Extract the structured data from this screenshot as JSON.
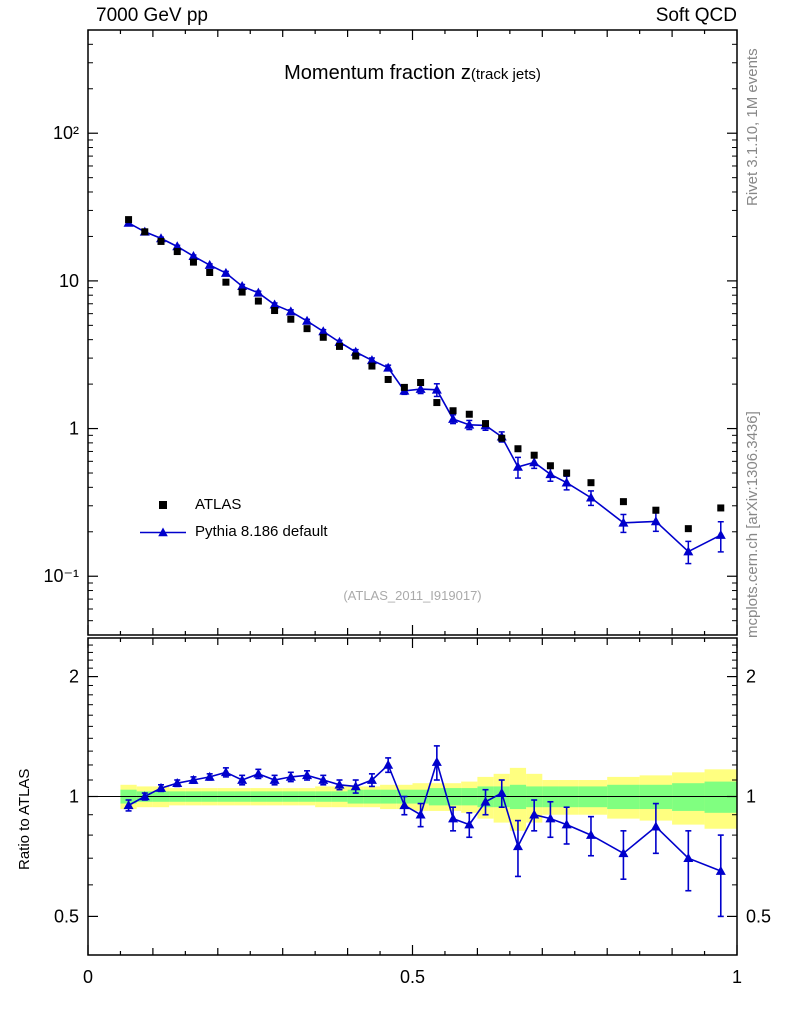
{
  "header": {
    "left": "7000 GeV pp",
    "right": "Soft QCD"
  },
  "title": {
    "main": "Momentum fraction z",
    "sub": "(track jets)"
  },
  "watermark": "(ATLAS_2011_I919017)",
  "side_labels": {
    "top_right": "Rivet 3.1.10, 1M events",
    "bottom_right": "mcplots.cern.ch [arXiv:1306.3436]"
  },
  "ratio_axis_label": "Ratio to ATLAS",
  "legend": {
    "atlas": "ATLAS",
    "pythia": "Pythia 8.186 default"
  },
  "colors": {
    "atlas": "#000000",
    "pythia": "#0000cc",
    "band_yellow": "#ffff80",
    "band_green": "#80ff80",
    "watermark": "#aaaaaa",
    "side_text": "#888888"
  },
  "axes": {
    "x": {
      "min": 0,
      "max": 1,
      "ticks": [
        {
          "v": 0,
          "label": "0"
        },
        {
          "v": 0.5,
          "label": "0.5"
        },
        {
          "v": 1,
          "label": "1"
        }
      ]
    },
    "y_top": {
      "scale": "log",
      "ticks": [
        {
          "v": 100,
          "label": "10²"
        },
        {
          "v": 10,
          "label": "10"
        },
        {
          "v": 1,
          "label": "1"
        },
        {
          "v": 0.1,
          "label": "10⁻¹"
        }
      ]
    },
    "y_ratio": {
      "scale": "log",
      "ticks": [
        {
          "v": 2,
          "label": "2"
        },
        {
          "v": 1,
          "label": "1"
        },
        {
          "v": 0.5,
          "label": "0.5"
        }
      ]
    }
  },
  "chart_data": {
    "type": "line",
    "xlabel": "z",
    "x": [
      0.0625,
      0.0875,
      0.1125,
      0.1375,
      0.1625,
      0.1875,
      0.2125,
      0.2375,
      0.2625,
      0.2875,
      0.3125,
      0.3375,
      0.3625,
      0.3875,
      0.4125,
      0.4375,
      0.4625,
      0.4875,
      0.5125,
      0.5375,
      0.5625,
      0.5875,
      0.6125,
      0.6375,
      0.6625,
      0.6875,
      0.7125,
      0.7375,
      0.775,
      0.825,
      0.875,
      0.925,
      0.975
    ],
    "top_panel": {
      "yscale": "log",
      "ylim": [
        0.04,
        500
      ],
      "series": [
        {
          "name": "ATLAS",
          "style": "filled-square",
          "values": [
            26,
            21.5,
            18.5,
            15.8,
            13.4,
            11.4,
            9.8,
            8.4,
            7.3,
            6.3,
            5.5,
            4.75,
            4.15,
            3.6,
            3.1,
            2.65,
            2.15,
            1.9,
            2.05,
            1.5,
            1.32,
            1.25,
            1.08,
            0.86,
            0.73,
            0.66,
            0.56,
            0.5,
            0.43,
            0.32,
            0.28,
            0.21,
            0.29
          ]
        },
        {
          "name": "Pythia 8.186 default",
          "style": "line-triangle",
          "values": [
            24.7,
            21.5,
            19.4,
            17.1,
            14.7,
            12.8,
            11.3,
            9.2,
            8.3,
            6.9,
            6.2,
            5.35,
            4.55,
            3.85,
            3.3,
            2.9,
            2.58,
            1.8,
            1.85,
            1.83,
            1.16,
            1.06,
            1.05,
            0.88,
            0.55,
            0.59,
            0.49,
            0.43,
            0.34,
            0.23,
            0.235,
            0.147,
            0.19
          ]
        }
      ]
    },
    "ratio_panel": {
      "yscale": "log",
      "ylim": [
        0.4,
        2.5
      ],
      "reference": 1,
      "values": [
        0.95,
        1.0,
        1.05,
        1.08,
        1.1,
        1.12,
        1.15,
        1.1,
        1.14,
        1.1,
        1.12,
        1.13,
        1.1,
        1.07,
        1.06,
        1.1,
        1.2,
        0.95,
        0.9,
        1.22,
        0.88,
        0.85,
        0.97,
        1.02,
        0.75,
        0.9,
        0.88,
        0.85,
        0.8,
        0.72,
        0.84,
        0.7,
        0.65
      ],
      "errors": [
        0.03,
        0.02,
        0.02,
        0.02,
        0.02,
        0.02,
        0.03,
        0.03,
        0.03,
        0.03,
        0.03,
        0.03,
        0.03,
        0.03,
        0.04,
        0.04,
        0.05,
        0.05,
        0.06,
        0.12,
        0.06,
        0.06,
        0.07,
        0.08,
        0.12,
        0.08,
        0.09,
        0.09,
        0.09,
        0.1,
        0.12,
        0.12,
        0.15
      ],
      "yellow_band": [
        0.07,
        0.06,
        0.06,
        0.05,
        0.05,
        0.05,
        0.05,
        0.05,
        0.05,
        0.05,
        0.05,
        0.05,
        0.06,
        0.06,
        0.06,
        0.06,
        0.07,
        0.07,
        0.08,
        0.08,
        0.08,
        0.09,
        0.12,
        0.14,
        0.18,
        0.14,
        0.1,
        0.1,
        0.1,
        0.12,
        0.13,
        0.15,
        0.17
      ],
      "green_band": [
        0.04,
        0.03,
        0.03,
        0.03,
        0.03,
        0.03,
        0.03,
        0.03,
        0.03,
        0.03,
        0.03,
        0.03,
        0.03,
        0.03,
        0.04,
        0.04,
        0.04,
        0.04,
        0.04,
        0.05,
        0.05,
        0.05,
        0.06,
        0.06,
        0.07,
        0.06,
        0.06,
        0.06,
        0.06,
        0.07,
        0.07,
        0.08,
        0.09
      ]
    }
  }
}
